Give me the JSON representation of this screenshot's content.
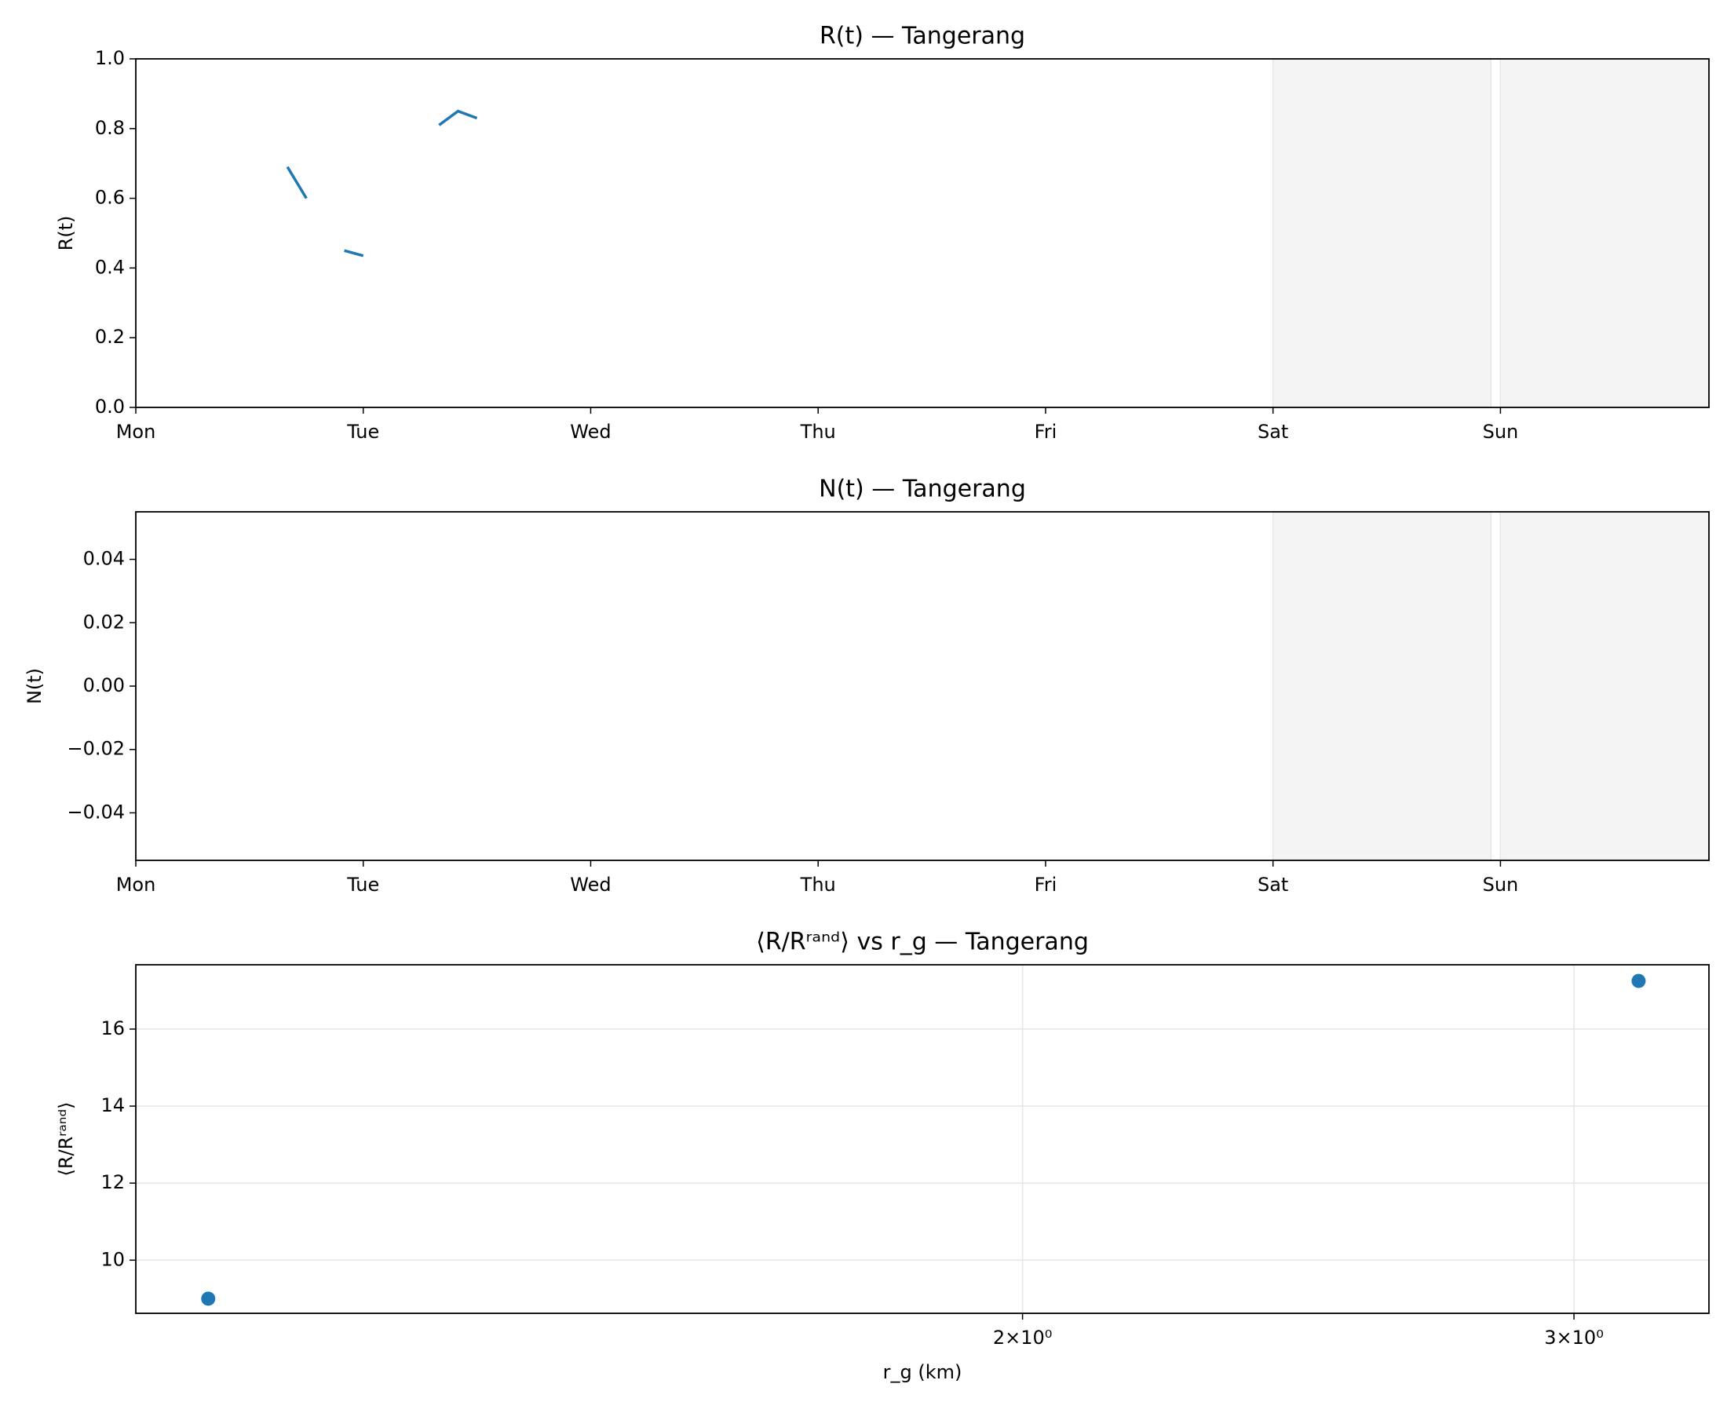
{
  "chart_data": [
    {
      "type": "line",
      "title": "R(t) — Tangerang",
      "y_label": "R(t)",
      "x": [
        16,
        18,
        20,
        22,
        24,
        26,
        28,
        30,
        32,
        34,
        36
      ],
      "series": [
        {
          "color": "#1f77b4",
          "values": [
            0.69,
            0.6,
            null,
            0.45,
            0.435,
            null,
            null,
            null,
            0.81,
            0.85,
            0.83
          ]
        }
      ],
      "xlim": [
        0,
        166
      ],
      "xticks": [
        {
          "value": 0,
          "label": "Mon"
        },
        {
          "value": 24,
          "label": "Tue"
        },
        {
          "value": 48,
          "label": "Wed"
        },
        {
          "value": 72,
          "label": "Thu"
        },
        {
          "value": 96,
          "label": "Fri"
        },
        {
          "value": 120,
          "label": "Sat"
        },
        {
          "value": 144,
          "label": "Sun"
        }
      ],
      "ylim": [
        0,
        1
      ],
      "yticks": [
        {
          "value": 0,
          "label": "0.0"
        },
        0.2,
        0.4,
        0.6,
        0.8,
        {
          "value": 1,
          "label": "1.0"
        }
      ],
      "shaded_spans": [
        [
          120,
          143
        ],
        [
          144,
          166
        ]
      ],
      "shade_color": "#f4f4f4",
      "grid": false
    },
    {
      "type": "line",
      "title": "N(t) — Tangerang",
      "y_label": "N(t)",
      "x": [],
      "series": [
        {
          "color": "#1f77b4",
          "values": []
        }
      ],
      "xlim": [
        0,
        166
      ],
      "xticks": [
        {
          "value": 0,
          "label": "Mon"
        },
        {
          "value": 24,
          "label": "Tue"
        },
        {
          "value": 48,
          "label": "Wed"
        },
        {
          "value": 72,
          "label": "Thu"
        },
        {
          "value": 96,
          "label": "Fri"
        },
        {
          "value": 120,
          "label": "Sat"
        },
        {
          "value": 144,
          "label": "Sun"
        }
      ],
      "ylim": [
        -0.055,
        0.055
      ],
      "yticks": [
        {
          "value": -0.04,
          "label": "−0.04"
        },
        {
          "value": -0.02,
          "label": "−0.02"
        },
        {
          "value": 0,
          "label": "0.00"
        },
        0.02,
        0.04
      ],
      "shaded_spans": [
        [
          120,
          143
        ],
        [
          144,
          166
        ]
      ],
      "shade_color": "#f4f4f4",
      "grid": false
    },
    {
      "type": "scatter",
      "title": "⟨R/Rʳᵃⁿᵈ⟩ vs r_g — Tangerang",
      "y_label": "⟨R/Rʳᵃⁿᵈ⟩",
      "x_label": "r_g (km)",
      "x": [
        1.099,
        3.146
      ],
      "series": [
        {
          "color": "#1f77b4",
          "values": [
            9.0,
            17.25
          ]
        }
      ],
      "xscale": "log",
      "xlim": [
        1.042,
        3.313
      ],
      "xticks": [
        {
          "value": 2,
          "label": "2×10⁰"
        },
        {
          "value": 3,
          "label": "3×10⁰"
        }
      ],
      "ylim": [
        8.62,
        17.67
      ],
      "yticks": [
        10,
        12,
        14,
        16
      ],
      "grid": true
    }
  ]
}
